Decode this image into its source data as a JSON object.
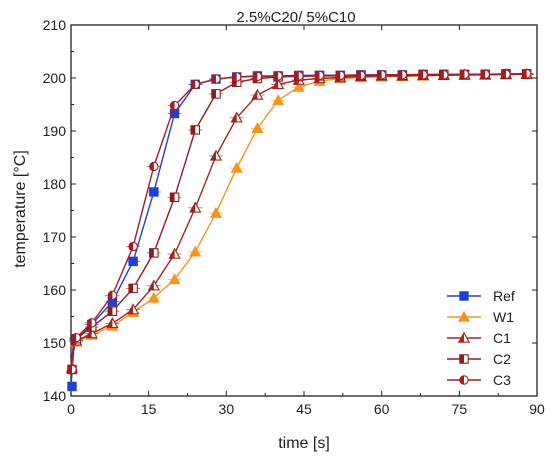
{
  "chart_data": {
    "type": "line",
    "title": "2.5%C20/ 5%C10",
    "xlabel": "time [s]",
    "ylabel": "temperature [°C]",
    "xlim": [
      0,
      90
    ],
    "ylim": [
      140,
      210
    ],
    "xticks": [
      "0",
      "15",
      "30",
      "45",
      "60",
      "75",
      "90"
    ],
    "yticks": [
      "140",
      "150",
      "160",
      "170",
      "180",
      "190",
      "200",
      "210"
    ],
    "grid": false,
    "legend_position": "bottom-right",
    "series": [
      {
        "name": "Ref",
        "color": "#1f3fd6",
        "marker": "square",
        "x": [
          0,
          0.5,
          1,
          4,
          8,
          12,
          16,
          20,
          24,
          28,
          32,
          36,
          40,
          44,
          48,
          52,
          56,
          60,
          64,
          68,
          72,
          76,
          80,
          84,
          88
        ],
        "y": [
          141.8,
          148.5,
          150.5,
          153.5,
          157.8,
          165.4,
          178.5,
          193.3,
          198.8,
          199.8,
          200.2,
          200.4,
          200.4,
          200.5,
          200.5,
          200.5,
          200.6,
          200.6,
          200.6,
          200.7,
          200.7,
          200.7,
          200.7,
          200.8,
          200.8
        ]
      },
      {
        "name": "W1",
        "color": "#f5951f",
        "marker": "triangle",
        "x": [
          0,
          0.5,
          1,
          4,
          8,
          12,
          16,
          20,
          24,
          28,
          32,
          36,
          40,
          44,
          48,
          52,
          56,
          60,
          64,
          68,
          72,
          76,
          80,
          84,
          88
        ],
        "y": [
          145.5,
          149.5,
          150.2,
          151.5,
          153.2,
          155.8,
          158.5,
          162.0,
          167.2,
          174.5,
          183.0,
          190.5,
          195.8,
          198.3,
          199.4,
          199.9,
          200.1,
          200.2,
          200.3,
          200.4,
          200.5,
          200.5,
          200.6,
          200.6,
          200.7
        ]
      },
      {
        "name": "C1",
        "color": "#a0261f",
        "marker": "triangle-half",
        "x": [
          0,
          0.5,
          1,
          4,
          8,
          12,
          16,
          20,
          24,
          28,
          32,
          36,
          40,
          44,
          48,
          52,
          56,
          60,
          64,
          68,
          72,
          76,
          80,
          84,
          88
        ],
        "y": [
          145.2,
          149.6,
          150.4,
          151.8,
          153.7,
          156.3,
          160.8,
          166.8,
          175.5,
          185.3,
          192.5,
          196.8,
          198.8,
          199.6,
          199.9,
          200.1,
          200.3,
          200.4,
          200.4,
          200.5,
          200.5,
          200.6,
          200.6,
          200.7,
          200.7
        ]
      },
      {
        "name": "C2",
        "color": "#8f1c1c",
        "marker": "square-half",
        "x": [
          0,
          0.5,
          1,
          4,
          8,
          12,
          16,
          20,
          24,
          28,
          32,
          36,
          40,
          44,
          48,
          52,
          56,
          60,
          64,
          68,
          72,
          76,
          80,
          84,
          88
        ],
        "y": [
          145.0,
          149.8,
          150.8,
          153.0,
          156.0,
          160.3,
          167.0,
          177.5,
          190.2,
          197.0,
          199.2,
          199.9,
          200.2,
          200.3,
          200.4,
          200.4,
          200.5,
          200.5,
          200.5,
          200.6,
          200.6,
          200.6,
          200.7,
          200.7,
          200.7
        ]
      },
      {
        "name": "C3",
        "color": "#a51d24",
        "marker": "circle-half",
        "x": [
          0,
          0.5,
          1,
          4,
          8,
          12,
          16,
          20,
          24,
          28,
          32,
          36,
          40,
          44,
          48,
          52,
          56,
          60,
          64,
          68,
          72,
          76,
          80,
          84,
          88
        ],
        "y": [
          145.0,
          150.0,
          151.0,
          153.8,
          159.0,
          168.2,
          183.3,
          194.8,
          198.8,
          199.8,
          200.2,
          200.3,
          200.4,
          200.4,
          200.5,
          200.5,
          200.5,
          200.6,
          200.6,
          200.6,
          200.6,
          200.7,
          200.7,
          200.7,
          200.8
        ]
      }
    ]
  }
}
